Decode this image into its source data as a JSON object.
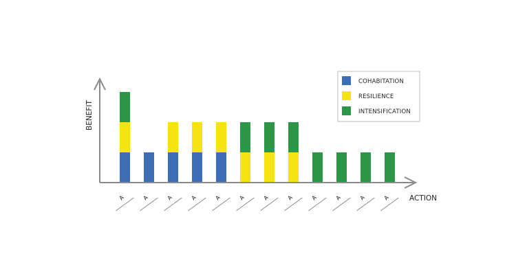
{
  "chart_data": {
    "type": "bar",
    "stacked": true,
    "xlabel": "ACTION",
    "ylabel": "BENEFIT",
    "categories": [
      "A",
      "A",
      "A",
      "A",
      "A",
      "A",
      "A",
      "A",
      "A",
      "A",
      "A",
      "A"
    ],
    "series": [
      {
        "name": "COHABITATION",
        "color": "#3d6db5",
        "values": [
          1,
          1,
          1,
          1,
          1,
          0,
          0,
          0,
          0,
          0,
          0,
          0
        ]
      },
      {
        "name": "RESILIENCE",
        "color": "#f5e412",
        "values": [
          1,
          0,
          1,
          1,
          1,
          1,
          1,
          1,
          0,
          0,
          0,
          0
        ]
      },
      {
        "name": "INTENSIFICATION",
        "color": "#2e9747",
        "values": [
          1,
          0,
          0,
          0,
          0,
          1,
          1,
          1,
          1,
          1,
          1,
          1
        ]
      }
    ],
    "ylim": [
      0,
      3
    ],
    "grid": false,
    "legend_position": "top-right",
    "axis_color": "#8a8a8a"
  }
}
